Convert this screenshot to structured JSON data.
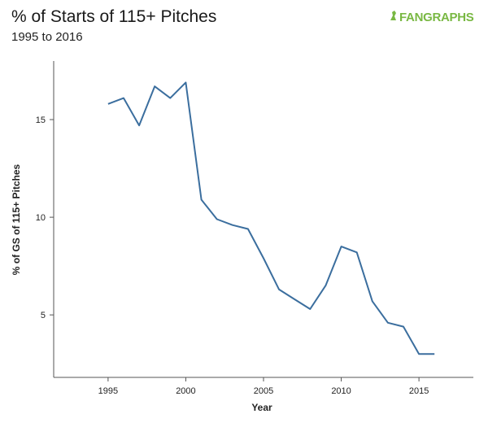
{
  "header": {
    "title": "% of Starts of 115+ Pitches",
    "subtitle": "1995 to 2016",
    "logo_text": "FANGRAPHS"
  },
  "colors": {
    "line": "#3b6e9e",
    "logo": "#79b843",
    "axis": "#555555"
  },
  "chart_data": {
    "type": "line",
    "title": "% of Starts of 115+ Pitches",
    "subtitle": "1995 to 2016",
    "xlabel": "Year",
    "ylabel": "% of GS of 115+ Pitches",
    "xlim": [
      1991.5,
      2018.5
    ],
    "ylim": [
      1.8,
      18.0
    ],
    "x_ticks": [
      1995,
      2000,
      2005,
      2010,
      2015
    ],
    "y_ticks": [
      5,
      10,
      15
    ],
    "grid": false,
    "series": [
      {
        "x": [
          1995,
          1996,
          1997,
          1998,
          1999,
          2000,
          2001,
          2002,
          2003,
          2004,
          2005,
          2006,
          2007,
          2008,
          2009,
          2010,
          2011,
          2012,
          2013,
          2014,
          2015,
          2016
        ],
        "values": [
          15.8,
          16.1,
          14.7,
          16.7,
          16.1,
          16.9,
          10.9,
          9.9,
          9.6,
          9.4,
          7.9,
          6.3,
          5.8,
          5.3,
          6.5,
          8.5,
          8.2,
          5.7,
          4.6,
          4.4,
          3.0,
          3.0
        ]
      }
    ]
  }
}
